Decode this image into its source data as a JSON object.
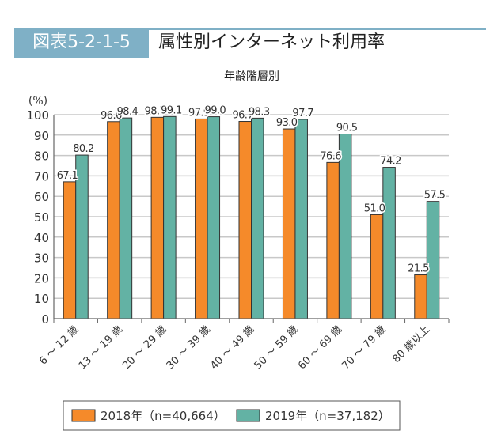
{
  "header": {
    "figure_number": "図表5-2-1-5",
    "title": "属性別インターネット利用率"
  },
  "chart_data": {
    "type": "bar",
    "title": "年齢階層別",
    "ylabel": "(%)",
    "ylim": [
      0,
      100
    ],
    "yticks": [
      0,
      10,
      20,
      30,
      40,
      50,
      60,
      70,
      80,
      90,
      100
    ],
    "grid": true,
    "legend": "bottom",
    "categories": [
      "6 ～ 12 歳",
      "13 ～ 19 歳",
      "20 ～ 29 歳",
      "30 ～ 39 歳",
      "40 ～ 49 歳",
      "50 ～ 59 歳",
      "60 ～ 69 歳",
      "70 ～ 79 歳",
      "80 歳以上"
    ],
    "series": [
      {
        "name": "2018年（n=40,664）",
        "color": "#f58a2a",
        "values": [
          67.1,
          96.6,
          98.7,
          97.9,
          96.7,
          93.0,
          76.6,
          51.0,
          21.5
        ]
      },
      {
        "name": "2019年（n=37,182）",
        "color": "#63b2a4",
        "values": [
          80.2,
          98.4,
          99.1,
          99.0,
          98.3,
          97.7,
          90.5,
          74.2,
          57.5
        ]
      }
    ]
  }
}
